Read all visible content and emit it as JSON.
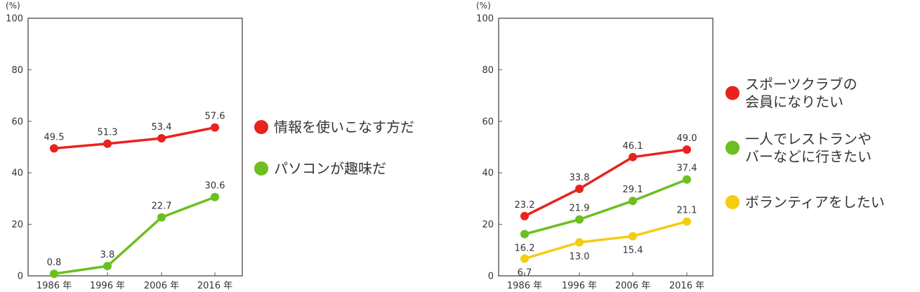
{
  "chart_data": [
    {
      "type": "line",
      "yunit": "(%)",
      "ylim": [
        0,
        100
      ],
      "yticks": [
        0,
        20,
        40,
        60,
        80,
        100
      ],
      "categories": [
        "1986 年",
        "1996 年",
        "2006 年",
        "2016 年"
      ],
      "grid": false,
      "legend_position": "right",
      "series": [
        {
          "name": "情報を使いこなす方だ",
          "color": "#e8231e",
          "values": [
            49.5,
            51.3,
            53.4,
            57.6
          ],
          "labels": [
            "49.5",
            "51.3",
            "53.4",
            "57.6"
          ]
        },
        {
          "name": "パソコンが趣味だ",
          "color": "#6bbf1e",
          "values": [
            0.8,
            3.8,
            22.7,
            30.6
          ],
          "labels": [
            "0.8",
            "3.8",
            "22.7",
            "30.6"
          ]
        }
      ]
    },
    {
      "type": "line",
      "yunit": "(%)",
      "ylim": [
        0,
        100
      ],
      "yticks": [
        0,
        20,
        40,
        60,
        80,
        100
      ],
      "categories": [
        "1986 年",
        "1996 年",
        "2006 年",
        "2016 年"
      ],
      "grid": false,
      "legend_position": "right",
      "series": [
        {
          "name": "スポーツクラブの\n会員になりたい",
          "color": "#e8231e",
          "values": [
            23.2,
            33.8,
            46.1,
            49.0
          ],
          "labels": [
            "23.2",
            "33.8",
            "46.1",
            "49.0"
          ]
        },
        {
          "name": "一人でレストランや\nバーなどに行きたい",
          "color": "#6bbf1e",
          "values": [
            16.2,
            21.9,
            29.1,
            37.4
          ],
          "labels": [
            "16.2",
            "21.9",
            "29.1",
            "37.4"
          ]
        },
        {
          "name": "ボランティアをしたい",
          "color": "#f5cc10",
          "values": [
            6.7,
            13.0,
            15.4,
            21.1
          ],
          "labels": [
            "6.7",
            "13.0",
            "15.4",
            "21.1"
          ]
        }
      ]
    }
  ]
}
